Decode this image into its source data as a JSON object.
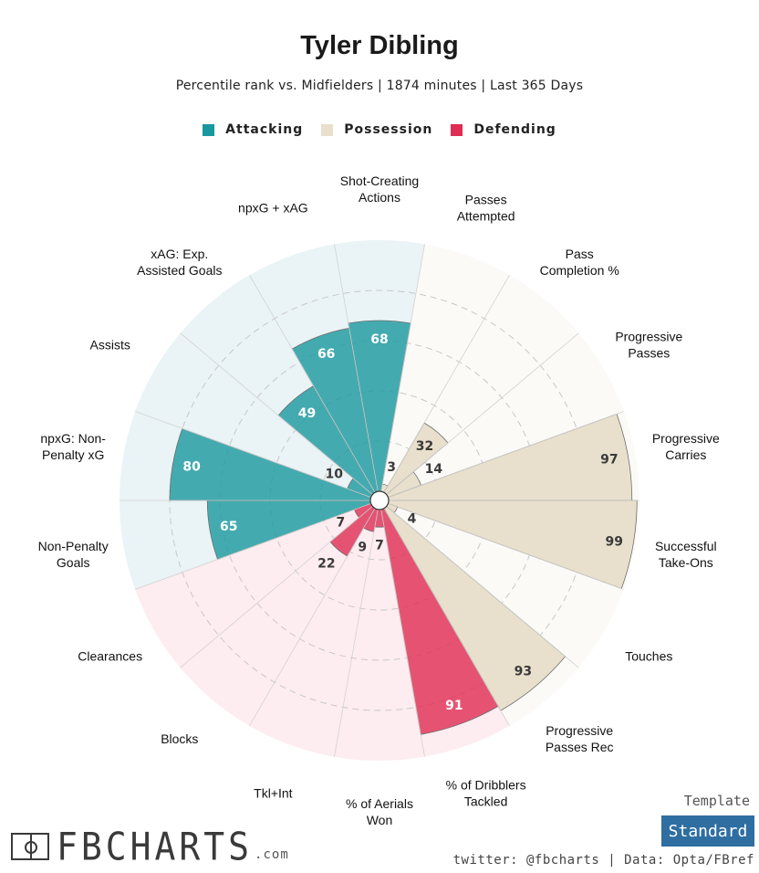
{
  "colors": {
    "attacking": "#19989f",
    "possession": "#e8e0cc",
    "defending": "#e02d53",
    "attacking_bg": "#eaf3f5",
    "possession_bg": "#fbfaf7",
    "defending_bg": "#fdecf0",
    "button": "#2e6ea1"
  },
  "legend": [
    {
      "label": "Attacking",
      "color": "#19989f"
    },
    {
      "label": "Possession",
      "color": "#e8e0cc"
    },
    {
      "label": "Defending",
      "color": "#e02d53"
    }
  ],
  "chart_data": {
    "type": "polar-bar",
    "title": "Tyler Dibling",
    "subtitle": "Percentile rank vs. Midfielders | 1874 minutes | Last 365 Days",
    "rlim": [
      0,
      100
    ],
    "gridlines": [
      20,
      40,
      60,
      80
    ],
    "metrics": [
      {
        "label": [
          "Shot-Creating",
          "Actions"
        ],
        "value": 68,
        "group": "Attacking"
      },
      {
        "label": [
          "Passes",
          "Attempted"
        ],
        "value": 3,
        "group": "Possession"
      },
      {
        "label": [
          "Pass",
          "Completion %"
        ],
        "value": 32,
        "group": "Possession"
      },
      {
        "label": [
          "Progressive",
          "Passes"
        ],
        "value": 14,
        "group": "Possession"
      },
      {
        "label": [
          "Progressive",
          "Carries"
        ],
        "value": 97,
        "group": "Possession"
      },
      {
        "label": [
          "Successful",
          "Take-Ons"
        ],
        "value": 99,
        "group": "Possession"
      },
      {
        "label": [
          "Touches"
        ],
        "value": 4,
        "group": "Possession"
      },
      {
        "label": [
          "Progressive",
          "Passes Rec"
        ],
        "value": 93,
        "group": "Possession"
      },
      {
        "label": [
          "% of Dribblers",
          "Tackled"
        ],
        "value": 91,
        "group": "Defending"
      },
      {
        "label": [
          "% of Aerials",
          "Won"
        ],
        "value": 7,
        "group": "Defending"
      },
      {
        "label": [
          "Tkl+Int"
        ],
        "value": 9,
        "group": "Defending"
      },
      {
        "label": [
          "Blocks"
        ],
        "value": 22,
        "group": "Defending"
      },
      {
        "label": [
          "Clearances"
        ],
        "value": 7,
        "group": "Defending"
      },
      {
        "label": [
          "Non-Penalty",
          "Goals"
        ],
        "value": 65,
        "group": "Attacking"
      },
      {
        "label": [
          "npxG: Non-",
          "Penalty xG"
        ],
        "value": 80,
        "group": "Attacking"
      },
      {
        "label": [
          "Assists"
        ],
        "value": 10,
        "group": "Attacking"
      },
      {
        "label": [
          "xAG: Exp.",
          "Assisted Goals"
        ],
        "value": 49,
        "group": "Attacking"
      },
      {
        "label": [
          "npxG + xAG"
        ],
        "value": 66,
        "group": "Attacking"
      }
    ]
  },
  "branding": {
    "name": "FBCHARTS",
    "suffix": ".com",
    "template_label": "Template",
    "template_value": "Standard",
    "credit": "twitter: @fbcharts | Data: Opta/FBref"
  }
}
